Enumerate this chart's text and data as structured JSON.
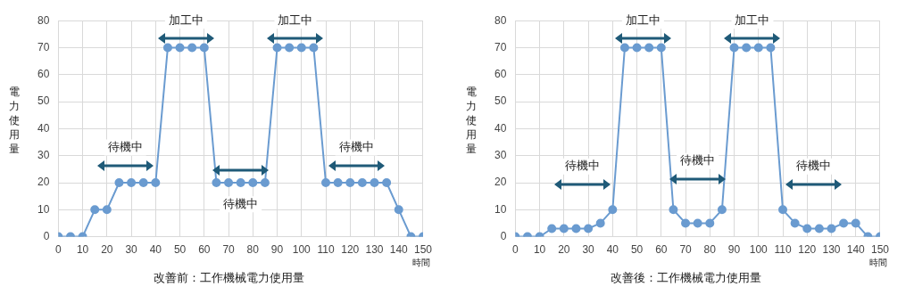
{
  "chart_data": [
    {
      "type": "line",
      "title": "改善前：工作機械電力使用量",
      "xlabel": "時間",
      "ylabel": "電力使用量",
      "color": "#6a9bd0",
      "marker": "circle",
      "grid": true,
      "x": [
        0,
        5,
        10,
        15,
        20,
        25,
        30,
        35,
        40,
        45,
        50,
        55,
        60,
        65,
        70,
        75,
        80,
        85,
        90,
        95,
        100,
        105,
        110,
        115,
        120,
        125,
        130,
        135,
        140,
        145,
        150
      ],
      "values": [
        0,
        0,
        0,
        10,
        10,
        20,
        20,
        20,
        20,
        70,
        70,
        70,
        70,
        20,
        20,
        20,
        20,
        20,
        70,
        70,
        70,
        70,
        20,
        20,
        20,
        20,
        20,
        20,
        10,
        0,
        0
      ],
      "xlim": [
        0,
        150
      ],
      "xticks": [
        0,
        10,
        20,
        30,
        40,
        50,
        60,
        70,
        80,
        90,
        100,
        110,
        120,
        130,
        140,
        150
      ],
      "ylim": [
        0,
        80
      ],
      "yticks": [
        0,
        10,
        20,
        30,
        40,
        50,
        60,
        70,
        80
      ],
      "annotations": [
        "加工中",
        "加工中",
        "待機中",
        "待機中",
        "待機中"
      ]
    },
    {
      "type": "line",
      "title": "改善後：工作機械電力使用量",
      "xlabel": "時間",
      "ylabel": "電力使用量",
      "color": "#6a9bd0",
      "marker": "circle",
      "grid": true,
      "x": [
        0,
        5,
        10,
        15,
        20,
        25,
        30,
        35,
        40,
        45,
        50,
        55,
        60,
        65,
        70,
        75,
        80,
        85,
        90,
        95,
        100,
        105,
        110,
        115,
        120,
        125,
        130,
        135,
        140,
        145,
        150
      ],
      "values": [
        0,
        0,
        0,
        3,
        3,
        3,
        3,
        5,
        10,
        70,
        70,
        70,
        70,
        10,
        5,
        5,
        5,
        10,
        70,
        70,
        70,
        70,
        10,
        5,
        3,
        3,
        3,
        5,
        5,
        0,
        0
      ],
      "xlim": [
        0,
        150
      ],
      "xticks": [
        0,
        10,
        20,
        30,
        40,
        50,
        60,
        70,
        80,
        90,
        100,
        110,
        120,
        130,
        140,
        150
      ],
      "ylim": [
        0,
        80
      ],
      "yticks": [
        0,
        10,
        20,
        30,
        40,
        50,
        60,
        70,
        80
      ],
      "annotations": [
        "加工中",
        "加工中",
        "待機中",
        "待機中",
        "待機中"
      ]
    }
  ]
}
